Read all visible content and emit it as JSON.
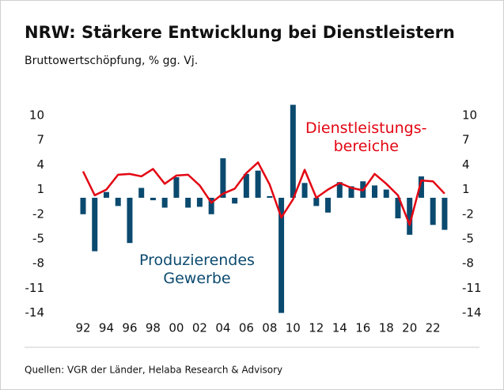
{
  "chart_data": {
    "type": "bar_line",
    "title": "NRW: Stärkere Entwicklung bei Dienstleistern",
    "subtitle": "Bruttowertschöpfung, % gg. Vj.",
    "source": "Quellen: VGR der Länder, Helaba Research & Advisory",
    "categories": [
      "92",
      null,
      "94",
      null,
      "96",
      null,
      "98",
      null,
      "00",
      null,
      "02",
      null,
      "04",
      null,
      "06",
      null,
      "08",
      null,
      "10",
      null,
      "12",
      null,
      "14",
      null,
      "16",
      null,
      "18",
      null,
      "20",
      null,
      "22",
      null
    ],
    "series": [
      {
        "name": "Produzierendes\nGewerbe",
        "type": "bar",
        "color": "#0b4a6f",
        "values": [
          -2,
          -6.5,
          0.7,
          -1,
          -5.5,
          1.2,
          -0.3,
          -1.2,
          2.5,
          -1.2,
          -1.1,
          -2,
          4.8,
          -0.7,
          2.9,
          3.3,
          0.2,
          -14,
          11.3,
          1.8,
          -1,
          -1.8,
          1.9,
          1.4,
          2,
          1.5,
          1,
          -2.5,
          -4.5,
          2.6,
          -3.3,
          -3.9
        ]
      },
      {
        "name": "Dienstleistungs-\nbereiche",
        "type": "line",
        "color": "#e30613",
        "values": [
          3.2,
          0.3,
          1,
          2.8,
          2.9,
          2.6,
          3.5,
          1.7,
          2.7,
          2.8,
          1.5,
          -0.6,
          0.5,
          1.1,
          3,
          4.3,
          1.6,
          -2.4,
          -0.2,
          3.4,
          0,
          1,
          1.8,
          1.2,
          0.9,
          2.9,
          1.7,
          0.3,
          -3.3,
          2.1,
          2,
          0.5
        ]
      }
    ],
    "ylim": [
      -14,
      11.5
    ],
    "yticks": [
      10,
      7,
      4,
      1,
      -2,
      -5,
      -8,
      -11,
      -14
    ],
    "y2lim": [
      -14,
      11.5
    ],
    "y2ticks": [
      10,
      7,
      4,
      1,
      -2,
      -5,
      -8,
      -11,
      -14
    ]
  }
}
